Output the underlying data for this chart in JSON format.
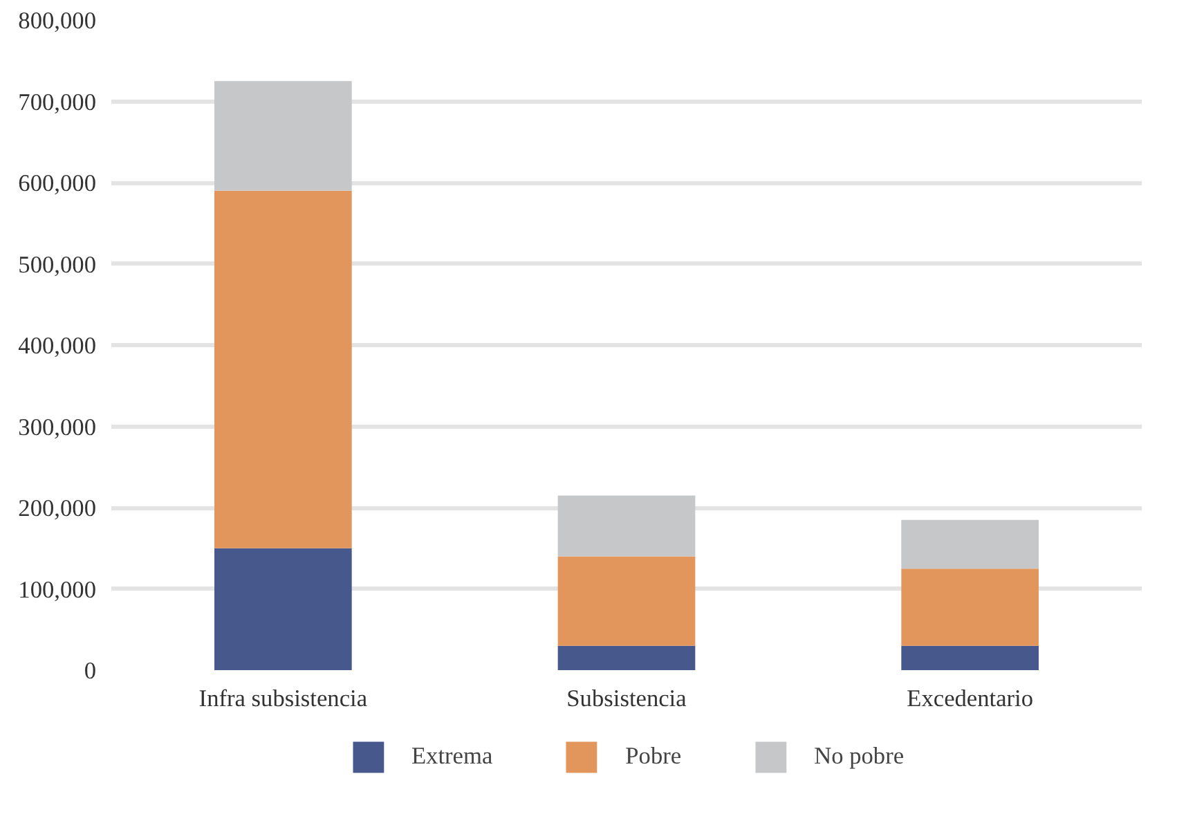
{
  "chart_data": {
    "type": "bar",
    "stacked": true,
    "categories": [
      "Infra subsistencia",
      "Subsistencia",
      "Excedentario"
    ],
    "series": [
      {
        "name": "Extrema",
        "color": "#47598c",
        "values": [
          150000,
          30000,
          30000
        ]
      },
      {
        "name": "Pobre",
        "color": "#e2965c",
        "values": [
          440000,
          110000,
          95000
        ]
      },
      {
        "name": "No pobre",
        "color": "#c6c7c9",
        "values": [
          135000,
          75000,
          60000
        ]
      }
    ],
    "ylim": [
      0,
      800000
    ],
    "yticks": [
      {
        "value": 0,
        "label": "0"
      },
      {
        "value": 100000,
        "label": "100,000"
      },
      {
        "value": 200000,
        "label": "200,000"
      },
      {
        "value": 300000,
        "label": "300,000"
      },
      {
        "value": 400000,
        "label": "400,000"
      },
      {
        "value": 500000,
        "label": "500,000"
      },
      {
        "value": 600000,
        "label": "600,000"
      },
      {
        "value": 700000,
        "label": "700,000"
      },
      {
        "value": 800000,
        "label": "800,000"
      }
    ],
    "grid": "y",
    "legend": "bottom"
  }
}
